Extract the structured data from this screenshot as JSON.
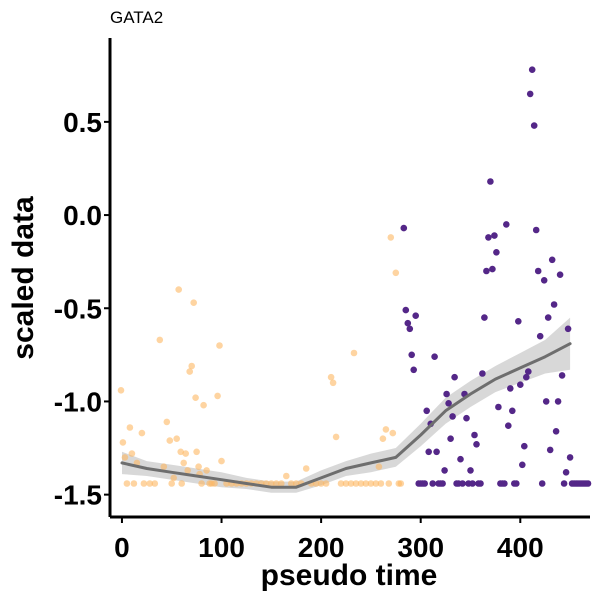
{
  "chart_data": {
    "type": "scatter",
    "title": "GATA2",
    "xlabel": "pseudo time",
    "ylabel": "scaled data",
    "xlim": [
      -12,
      470
    ],
    "ylim": [
      -1.62,
      0.95
    ],
    "x_ticks": [
      0,
      100,
      200,
      300,
      400
    ],
    "y_ticks": [
      0.5,
      0.0,
      -0.5,
      -1.0,
      -1.5
    ],
    "x_tick_labels": [
      "0",
      "100",
      "200",
      "300",
      "400"
    ],
    "y_tick_labels": [
      "0.5",
      "0.0",
      "-0.5",
      "-1.0",
      "-1.5"
    ],
    "grid": false,
    "legend": "none",
    "colors": {
      "group_early": "#FDB863",
      "group_late": "#542788",
      "smooth": "#6E6E6E",
      "ribbon": "#BEBEBE"
    },
    "series": [
      {
        "color": "#FDB863",
        "points": [
          [
            -1,
            -0.94
          ],
          [
            1,
            -1.22
          ],
          [
            3,
            -1.3
          ],
          [
            5,
            -1.44
          ],
          [
            8,
            -1.14
          ],
          [
            10,
            -1.28
          ],
          [
            12,
            -1.44
          ],
          [
            15,
            -1.33
          ],
          [
            20,
            -1.17
          ],
          [
            22,
            -1.44
          ],
          [
            28,
            -1.44
          ],
          [
            33,
            -1.44
          ],
          [
            38,
            -0.67
          ],
          [
            42,
            -1.35
          ],
          [
            45,
            -1.11
          ],
          [
            48,
            -1.21
          ],
          [
            50,
            -1.44
          ],
          [
            52,
            -1.41
          ],
          [
            55,
            -1.2
          ],
          [
            57,
            -0.4
          ],
          [
            59,
            -1.27
          ],
          [
            60,
            -1.44
          ],
          [
            62,
            -1.33
          ],
          [
            64,
            -1.28
          ],
          [
            66,
            -1.37
          ],
          [
            68,
            -0.84
          ],
          [
            70,
            -0.81
          ],
          [
            72,
            -0.47
          ],
          [
            74,
            -0.98
          ],
          [
            75,
            -1.27
          ],
          [
            77,
            -1.35
          ],
          [
            78,
            -1.39
          ],
          [
            80,
            -1.44
          ],
          [
            82,
            -1.02
          ],
          [
            85,
            -1.37
          ],
          [
            88,
            -1.44
          ],
          [
            90,
            -1.44
          ],
          [
            93,
            -1.44
          ],
          [
            96,
            -0.97
          ],
          [
            98,
            -0.7
          ],
          [
            100,
            -1.32
          ],
          [
            105,
            -1.44
          ],
          [
            110,
            -1.44
          ],
          [
            115,
            -1.44
          ],
          [
            120,
            -1.44
          ],
          [
            125,
            -1.44
          ],
          [
            130,
            -1.44
          ],
          [
            135,
            -1.44
          ],
          [
            140,
            -1.44
          ],
          [
            145,
            -1.44
          ],
          [
            150,
            -1.44
          ],
          [
            155,
            -1.44
          ],
          [
            160,
            -1.44
          ],
          [
            165,
            -1.4
          ],
          [
            170,
            -1.44
          ],
          [
            175,
            -1.44
          ],
          [
            180,
            -1.44
          ],
          [
            185,
            -1.36
          ],
          [
            190,
            -1.44
          ],
          [
            195,
            -1.44
          ],
          [
            200,
            -1.44
          ],
          [
            205,
            -1.44
          ],
          [
            210,
            -0.87
          ],
          [
            212,
            -0.9
          ],
          [
            215,
            -1.19
          ],
          [
            220,
            -1.44
          ],
          [
            225,
            -1.44
          ],
          [
            230,
            -1.44
          ],
          [
            233,
            -0.74
          ],
          [
            235,
            -1.44
          ],
          [
            240,
            -1.44
          ],
          [
            245,
            -1.44
          ],
          [
            250,
            -1.44
          ],
          [
            255,
            -1.44
          ],
          [
            258,
            -1.35
          ],
          [
            260,
            -1.44
          ],
          [
            262,
            -1.2
          ],
          [
            265,
            -1.15
          ],
          [
            268,
            -1.44
          ],
          [
            270,
            -0.12
          ],
          [
            272,
            -1.17
          ],
          [
            275,
            -0.31
          ],
          [
            278,
            -1.44
          ],
          [
            280,
            -1.44
          ]
        ]
      },
      {
        "color": "#542788",
        "points": [
          [
            283,
            -0.07
          ],
          [
            285,
            -0.51
          ],
          [
            287,
            -0.58
          ],
          [
            289,
            -0.61
          ],
          [
            291,
            -0.75
          ],
          [
            293,
            -0.83
          ],
          [
            295,
            -0.54
          ],
          [
            298,
            -1.44
          ],
          [
            300,
            -1.44
          ],
          [
            302,
            -1.44
          ],
          [
            304,
            -1.44
          ],
          [
            306,
            -1.05
          ],
          [
            308,
            -1.27
          ],
          [
            310,
            -1.12
          ],
          [
            312,
            -1.44
          ],
          [
            314,
            -0.76
          ],
          [
            316,
            -1.27
          ],
          [
            318,
            -1.44
          ],
          [
            320,
            -1.44
          ],
          [
            322,
            -1.44
          ],
          [
            324,
            -1.37
          ],
          [
            326,
            -0.96
          ],
          [
            328,
            -1.01
          ],
          [
            330,
            -1.2
          ],
          [
            332,
            -1.08
          ],
          [
            334,
            -0.87
          ],
          [
            336,
            -1.44
          ],
          [
            338,
            -1.44
          ],
          [
            340,
            -1.31
          ],
          [
            342,
            -1.44
          ],
          [
            344,
            -0.96
          ],
          [
            346,
            -1.09
          ],
          [
            348,
            -1.44
          ],
          [
            350,
            -1.37
          ],
          [
            352,
            -1.44
          ],
          [
            354,
            -1.18
          ],
          [
            356,
            -1.23
          ],
          [
            358,
            -1.44
          ],
          [
            360,
            -1.44
          ],
          [
            362,
            -0.85
          ],
          [
            364,
            -0.55
          ],
          [
            366,
            -0.3
          ],
          [
            368,
            -0.12
          ],
          [
            370,
            0.18
          ],
          [
            372,
            -0.29
          ],
          [
            374,
            -0.11
          ],
          [
            376,
            -0.2
          ],
          [
            378,
            -1.03
          ],
          [
            380,
            -1.44
          ],
          [
            382,
            -1.44
          ],
          [
            384,
            -1.44
          ],
          [
            386,
            -0.05
          ],
          [
            388,
            -1.13
          ],
          [
            390,
            -0.93
          ],
          [
            392,
            -1.05
          ],
          [
            394,
            -1.44
          ],
          [
            396,
            -1.44
          ],
          [
            398,
            -0.57
          ],
          [
            400,
            -0.91
          ],
          [
            402,
            -1.34
          ],
          [
            404,
            -1.24
          ],
          [
            406,
            -0.87
          ],
          [
            408,
            -0.84
          ],
          [
            410,
            0.65
          ],
          [
            412,
            0.78
          ],
          [
            414,
            0.48
          ],
          [
            416,
            -0.08
          ],
          [
            418,
            -0.3
          ],
          [
            420,
            -0.65
          ],
          [
            422,
            -1.44
          ],
          [
            424,
            -0.35
          ],
          [
            426,
            -1.0
          ],
          [
            428,
            -0.55
          ],
          [
            430,
            -1.26
          ],
          [
            432,
            -0.24
          ],
          [
            434,
            -0.48
          ],
          [
            436,
            -1.16
          ],
          [
            438,
            -1.0
          ],
          [
            440,
            -0.32
          ],
          [
            442,
            -0.86
          ],
          [
            444,
            -1.44
          ],
          [
            446,
            -1.38
          ],
          [
            448,
            -0.61
          ],
          [
            450,
            -1.3
          ],
          [
            452,
            -1.44
          ],
          [
            454,
            -1.44
          ],
          [
            456,
            -1.44
          ],
          [
            458,
            -1.44
          ],
          [
            460,
            -1.44
          ],
          [
            462,
            -1.44
          ],
          [
            464,
            -1.44
          ],
          [
            466,
            -1.44
          ],
          [
            468,
            -1.44
          ]
        ]
      }
    ],
    "smooth": {
      "x": [
        0,
        25,
        50,
        75,
        100,
        125,
        150,
        175,
        200,
        225,
        250,
        275,
        300,
        325,
        350,
        375,
        400,
        425,
        450
      ],
      "y": [
        -1.33,
        -1.36,
        -1.38,
        -1.4,
        -1.42,
        -1.44,
        -1.46,
        -1.46,
        -1.41,
        -1.36,
        -1.33,
        -1.3,
        -1.18,
        -1.05,
        -0.96,
        -0.88,
        -0.82,
        -0.76,
        -0.69
      ],
      "se": [
        0.06,
        0.04,
        0.04,
        0.04,
        0.04,
        0.03,
        0.03,
        0.03,
        0.04,
        0.04,
        0.05,
        0.05,
        0.06,
        0.07,
        0.07,
        0.07,
        0.08,
        0.09,
        0.14
      ]
    }
  }
}
